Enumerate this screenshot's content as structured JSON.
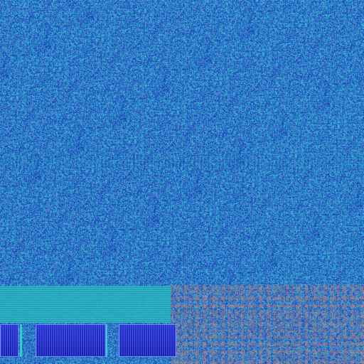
{
  "screen": {
    "description_label": "",
    "colors": {
      "base_blue": "#2c6cc4",
      "cyan_noise": "#30d8c8",
      "deep_blue": "#1a2fb0",
      "taskbar_button": "#2a2fd0",
      "warm_noise": "#c87a72"
    }
  },
  "taskbar": {
    "buttons": [
      {
        "label": "",
        "icon": "start-icon"
      },
      {
        "label": ""
      },
      {
        "label": ""
      }
    ]
  }
}
